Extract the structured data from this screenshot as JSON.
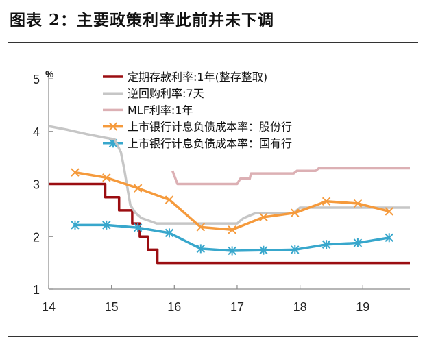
{
  "header": {
    "title": "图表 2：主要政策利率此前并未下调"
  },
  "chart_data": {
    "type": "line",
    "title": "图表 2：主要政策利率此前并未下调",
    "ylabel": "%",
    "xlabel": "",
    "xlim": [
      14,
      19.75
    ],
    "ylim": [
      1,
      5
    ],
    "xticks": [
      14,
      15,
      16,
      17,
      18,
      19
    ],
    "xtick_labels": [
      "14",
      "15",
      "16",
      "17",
      "18",
      "19"
    ],
    "yticks": [
      1,
      2,
      3,
      4,
      5
    ],
    "ytick_labels": [
      "1",
      "2",
      "3",
      "4",
      "5"
    ],
    "grid": false,
    "legend_position": "top",
    "series": [
      {
        "name": "定期存款利率:1年(整存整取)",
        "color": "#9b0d11",
        "marker": "none",
        "step": true,
        "points": [
          [
            14.0,
            3.0
          ],
          [
            14.9,
            3.0
          ],
          [
            14.9,
            2.75
          ],
          [
            15.12,
            2.75
          ],
          [
            15.12,
            2.5
          ],
          [
            15.33,
            2.5
          ],
          [
            15.33,
            2.25
          ],
          [
            15.45,
            2.25
          ],
          [
            15.45,
            2.0
          ],
          [
            15.58,
            2.0
          ],
          [
            15.58,
            1.75
          ],
          [
            15.73,
            1.75
          ],
          [
            15.73,
            1.5
          ],
          [
            19.75,
            1.5
          ]
        ]
      },
      {
        "name": "逆回购利率:7天",
        "color": "#c6c6c6",
        "marker": "none",
        "step": false,
        "points": [
          [
            14.0,
            4.1
          ],
          [
            14.3,
            4.03
          ],
          [
            14.6,
            3.95
          ],
          [
            14.9,
            3.88
          ],
          [
            15.05,
            3.85
          ],
          [
            15.15,
            3.6
          ],
          [
            15.2,
            3.3
          ],
          [
            15.3,
            2.6
          ],
          [
            15.38,
            2.45
          ],
          [
            15.48,
            2.35
          ],
          [
            15.6,
            2.3
          ],
          [
            15.72,
            2.25
          ],
          [
            16.0,
            2.25
          ],
          [
            16.3,
            2.25
          ],
          [
            17.0,
            2.25
          ],
          [
            17.1,
            2.35
          ],
          [
            17.3,
            2.45
          ],
          [
            17.9,
            2.45
          ],
          [
            18.0,
            2.55
          ],
          [
            19.75,
            2.55
          ]
        ]
      },
      {
        "name": "MLF利率:1年",
        "color": "#dcb0b4",
        "marker": "none",
        "step": false,
        "points": [
          [
            15.97,
            3.25
          ],
          [
            16.05,
            3.0
          ],
          [
            16.2,
            3.0
          ],
          [
            17.0,
            3.0
          ],
          [
            17.05,
            3.1
          ],
          [
            17.2,
            3.1
          ],
          [
            17.22,
            3.2
          ],
          [
            17.9,
            3.2
          ],
          [
            17.95,
            3.25
          ],
          [
            18.25,
            3.25
          ],
          [
            18.3,
            3.3
          ],
          [
            19.75,
            3.3
          ]
        ]
      },
      {
        "name": "上市银行计息负债成本率：股份行",
        "color": "#f59a3c",
        "marker": "x",
        "step": false,
        "points": [
          [
            14.42,
            3.22
          ],
          [
            14.92,
            3.12
          ],
          [
            15.42,
            2.92
          ],
          [
            15.92,
            2.7
          ],
          [
            16.42,
            2.18
          ],
          [
            16.92,
            2.13
          ],
          [
            17.42,
            2.37
          ],
          [
            17.92,
            2.45
          ],
          [
            18.42,
            2.67
          ],
          [
            18.92,
            2.63
          ],
          [
            19.42,
            2.48
          ]
        ]
      },
      {
        "name": "上市银行计息负债成本率：国有行",
        "color": "#38a7cc",
        "marker": "asterisk",
        "step": false,
        "points": [
          [
            14.42,
            2.22
          ],
          [
            14.92,
            2.22
          ],
          [
            15.42,
            2.17
          ],
          [
            15.92,
            2.07
          ],
          [
            16.42,
            1.77
          ],
          [
            16.92,
            1.73
          ],
          [
            17.42,
            1.74
          ],
          [
            17.92,
            1.75
          ],
          [
            18.42,
            1.85
          ],
          [
            18.92,
            1.88
          ],
          [
            19.42,
            1.98
          ]
        ]
      }
    ]
  }
}
